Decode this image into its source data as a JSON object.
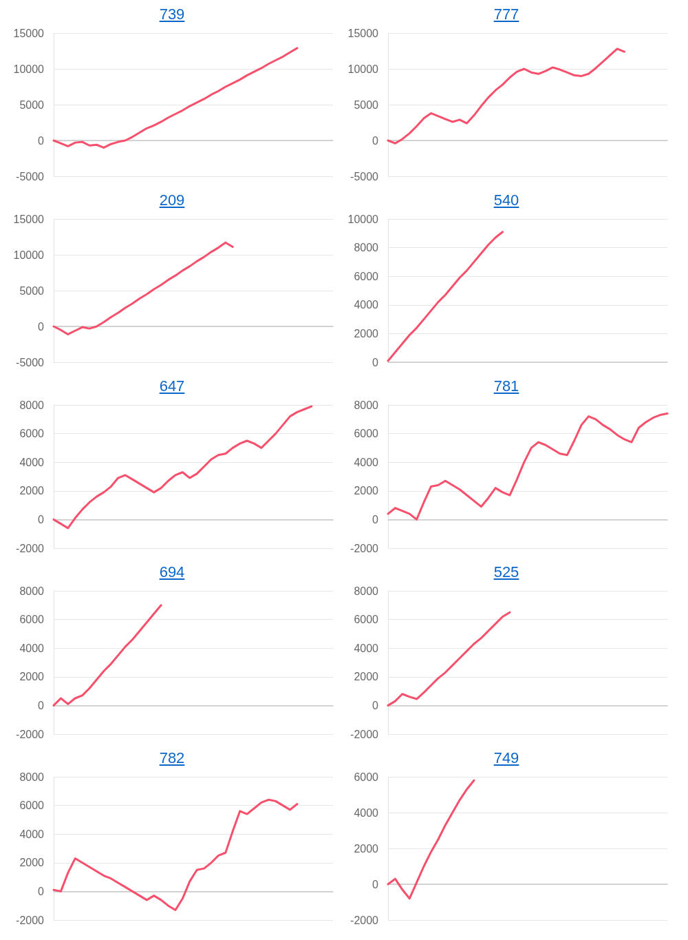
{
  "chart_data": [
    {
      "type": "line",
      "title": "739",
      "color": "#f7506c",
      "grid": "y",
      "tick_labels": "y",
      "ylim": [
        -5000,
        15000
      ],
      "yticks": [
        -5000,
        0,
        5000,
        10000,
        15000
      ],
      "categories": [
        null,
        null,
        null,
        null,
        null,
        null,
        null,
        null,
        null,
        null,
        null,
        null,
        null,
        null,
        null,
        null,
        null,
        null,
        null,
        null,
        null,
        null,
        null,
        null,
        null,
        null,
        null,
        null,
        null,
        null,
        null,
        null,
        null,
        null,
        null,
        null,
        null,
        null,
        null,
        null
      ],
      "values": [
        0,
        -400,
        -800,
        -300,
        -200,
        -700,
        -600,
        -1000,
        -500,
        -200,
        0,
        500,
        1100,
        1700,
        2100,
        2600,
        3200,
        3700,
        4200,
        4800,
        5300,
        5800,
        6400,
        6900,
        7500,
        8000,
        8500,
        9100,
        9600,
        10100,
        10700,
        11200,
        11700,
        12300,
        12900,
        null,
        null,
        null,
        null,
        null
      ]
    },
    {
      "type": "line",
      "title": "777",
      "color": "#f7506c",
      "grid": "y",
      "tick_labels": "y",
      "ylim": [
        -5000,
        15000
      ],
      "yticks": [
        -5000,
        0,
        5000,
        10000,
        15000
      ],
      "categories": [
        null,
        null,
        null,
        null,
        null,
        null,
        null,
        null,
        null,
        null,
        null,
        null,
        null,
        null,
        null,
        null,
        null,
        null,
        null,
        null,
        null,
        null,
        null,
        null,
        null,
        null,
        null,
        null,
        null,
        null,
        null,
        null,
        null,
        null,
        null,
        null,
        null,
        null,
        null,
        null
      ],
      "values": [
        0,
        -400,
        200,
        1000,
        2000,
        3100,
        3800,
        3400,
        3000,
        2600,
        2900,
        2400,
        3500,
        4800,
        6000,
        7000,
        7800,
        8800,
        9600,
        10000,
        9500,
        9300,
        9700,
        10200,
        9900,
        9500,
        9100,
        9000,
        9300,
        10100,
        11000,
        11900,
        12800,
        12400,
        null,
        null,
        null,
        null,
        null,
        null
      ]
    },
    {
      "type": "line",
      "title": "209",
      "color": "#f7506c",
      "grid": "y",
      "tick_labels": "y",
      "ylim": [
        -5000,
        15000
      ],
      "yticks": [
        -5000,
        0,
        5000,
        10000,
        15000
      ],
      "categories": [
        null,
        null,
        null,
        null,
        null,
        null,
        null,
        null,
        null,
        null,
        null,
        null,
        null,
        null,
        null,
        null,
        null,
        null,
        null,
        null,
        null,
        null,
        null,
        null,
        null,
        null,
        null,
        null,
        null,
        null,
        null,
        null,
        null,
        null,
        null,
        null,
        null,
        null,
        null,
        null
      ],
      "values": [
        0,
        -500,
        -1100,
        -600,
        -100,
        -300,
        0,
        600,
        1300,
        1900,
        2600,
        3200,
        3900,
        4500,
        5200,
        5800,
        6500,
        7100,
        7800,
        8400,
        9100,
        9700,
        10400,
        11000,
        11700,
        11100,
        null,
        null,
        null,
        null,
        null,
        null,
        null,
        null,
        null,
        null,
        null,
        null,
        null,
        null
      ]
    },
    {
      "type": "line",
      "title": "540",
      "color": "#f7506c",
      "grid": "y",
      "tick_labels": "y",
      "ylim": [
        0,
        10000
      ],
      "yticks": [
        0,
        2000,
        4000,
        6000,
        8000,
        10000
      ],
      "categories": [
        null,
        null,
        null,
        null,
        null,
        null,
        null,
        null,
        null,
        null,
        null,
        null,
        null,
        null,
        null,
        null,
        null,
        null,
        null,
        null,
        null,
        null,
        null,
        null,
        null,
        null,
        null,
        null,
        null,
        null,
        null,
        null,
        null,
        null,
        null,
        null,
        null,
        null,
        null,
        null
      ],
      "values": [
        100,
        700,
        1300,
        1900,
        2400,
        3000,
        3600,
        4200,
        4700,
        5300,
        5900,
        6400,
        7000,
        7600,
        8200,
        8700,
        9100,
        null,
        null,
        null,
        null,
        null,
        null,
        null,
        null,
        null,
        null,
        null,
        null,
        null,
        null,
        null,
        null,
        null,
        null,
        null,
        null,
        null,
        null,
        null
      ]
    },
    {
      "type": "line",
      "title": "647",
      "color": "#f7506c",
      "grid": "y",
      "tick_labels": "y",
      "ylim": [
        -2000,
        8000
      ],
      "yticks": [
        -2000,
        0,
        2000,
        4000,
        6000,
        8000
      ],
      "categories": [
        null,
        null,
        null,
        null,
        null,
        null,
        null,
        null,
        null,
        null,
        null,
        null,
        null,
        null,
        null,
        null,
        null,
        null,
        null,
        null,
        null,
        null,
        null,
        null,
        null,
        null,
        null,
        null,
        null,
        null,
        null,
        null,
        null,
        null,
        null,
        null,
        null,
        null,
        null,
        null
      ],
      "values": [
        0,
        -300,
        -600,
        100,
        700,
        1200,
        1600,
        1900,
        2300,
        2900,
        3100,
        2800,
        2500,
        2200,
        1900,
        2200,
        2700,
        3100,
        3300,
        2900,
        3200,
        3700,
        4200,
        4500,
        4600,
        5000,
        5300,
        5500,
        5300,
        5000,
        5500,
        6000,
        6600,
        7200,
        7500,
        7700,
        7900,
        null,
        null,
        null
      ]
    },
    {
      "type": "line",
      "title": "781",
      "color": "#f7506c",
      "grid": "y",
      "tick_labels": "y",
      "ylim": [
        -2000,
        8000
      ],
      "yticks": [
        -2000,
        0,
        2000,
        4000,
        6000,
        8000
      ],
      "categories": [
        null,
        null,
        null,
        null,
        null,
        null,
        null,
        null,
        null,
        null,
        null,
        null,
        null,
        null,
        null,
        null,
        null,
        null,
        null,
        null,
        null,
        null,
        null,
        null,
        null,
        null,
        null,
        null,
        null,
        null,
        null,
        null,
        null,
        null,
        null,
        null,
        null,
        null,
        null,
        null
      ],
      "values": [
        400,
        800,
        600,
        400,
        0,
        1200,
        2300,
        2400,
        2700,
        2400,
        2100,
        1700,
        1300,
        900,
        1500,
        2200,
        1900,
        1700,
        2800,
        4000,
        5000,
        5400,
        5200,
        4900,
        4600,
        4500,
        5500,
        6600,
        7200,
        7000,
        6600,
        6300,
        5900,
        5600,
        5400,
        6400,
        6800,
        7100,
        7300,
        7400
      ]
    },
    {
      "type": "line",
      "title": "694",
      "color": "#f7506c",
      "grid": "y",
      "tick_labels": "y",
      "ylim": [
        -2000,
        8000
      ],
      "yticks": [
        -2000,
        0,
        2000,
        4000,
        6000,
        8000
      ],
      "categories": [
        null,
        null,
        null,
        null,
        null,
        null,
        null,
        null,
        null,
        null,
        null,
        null,
        null,
        null,
        null,
        null,
        null,
        null,
        null,
        null,
        null,
        null,
        null,
        null,
        null,
        null,
        null,
        null,
        null,
        null,
        null,
        null,
        null,
        null,
        null,
        null,
        null,
        null,
        null,
        null
      ],
      "values": [
        0,
        500,
        100,
        500,
        700,
        1200,
        1800,
        2400,
        2900,
        3500,
        4100,
        4600,
        5200,
        5800,
        6400,
        7000,
        null,
        null,
        null,
        null,
        null,
        null,
        null,
        null,
        null,
        null,
        null,
        null,
        null,
        null,
        null,
        null,
        null,
        null,
        null,
        null,
        null,
        null,
        null,
        null
      ]
    },
    {
      "type": "line",
      "title": "525",
      "color": "#f7506c",
      "grid": "y",
      "tick_labels": "y",
      "ylim": [
        -2000,
        8000
      ],
      "yticks": [
        -2000,
        0,
        2000,
        4000,
        6000,
        8000
      ],
      "categories": [
        null,
        null,
        null,
        null,
        null,
        null,
        null,
        null,
        null,
        null,
        null,
        null,
        null,
        null,
        null,
        null,
        null,
        null,
        null,
        null,
        null,
        null,
        null,
        null,
        null,
        null,
        null,
        null,
        null,
        null,
        null,
        null,
        null,
        null,
        null,
        null,
        null,
        null,
        null,
        null
      ],
      "values": [
        0,
        300,
        800,
        600,
        450,
        900,
        1400,
        1900,
        2300,
        2800,
        3300,
        3800,
        4300,
        4700,
        5200,
        5700,
        6200,
        6500,
        null,
        null,
        null,
        null,
        null,
        null,
        null,
        null,
        null,
        null,
        null,
        null,
        null,
        null,
        null,
        null,
        null,
        null,
        null,
        null,
        null,
        null
      ]
    },
    {
      "type": "line",
      "title": "782",
      "color": "#f7506c",
      "grid": "y",
      "tick_labels": "y",
      "ylim": [
        -2000,
        8000
      ],
      "yticks": [
        -2000,
        0,
        2000,
        4000,
        6000,
        8000
      ],
      "categories": [
        null,
        null,
        null,
        null,
        null,
        null,
        null,
        null,
        null,
        null,
        null,
        null,
        null,
        null,
        null,
        null,
        null,
        null,
        null,
        null,
        null,
        null,
        null,
        null,
        null,
        null,
        null,
        null,
        null,
        null,
        null,
        null,
        null,
        null,
        null,
        null,
        null,
        null,
        null,
        null
      ],
      "values": [
        100,
        0,
        1300,
        2300,
        2000,
        1700,
        1400,
        1100,
        900,
        600,
        300,
        0,
        -300,
        -600,
        -300,
        -600,
        -1000,
        -1300,
        -500,
        700,
        1500,
        1600,
        2000,
        2500,
        2700,
        4200,
        5600,
        5400,
        5800,
        6200,
        6400,
        6300,
        6000,
        5700,
        6100,
        null,
        null,
        null,
        null,
        null
      ]
    },
    {
      "type": "line",
      "title": "749",
      "color": "#f7506c",
      "grid": "y",
      "tick_labels": "y",
      "ylim": [
        -2000,
        6000
      ],
      "yticks": [
        -2000,
        0,
        2000,
        4000,
        6000
      ],
      "categories": [
        null,
        null,
        null,
        null,
        null,
        null,
        null,
        null,
        null,
        null,
        null,
        null,
        null,
        null,
        null,
        null,
        null,
        null,
        null,
        null,
        null,
        null,
        null,
        null,
        null,
        null,
        null,
        null,
        null,
        null,
        null,
        null,
        null,
        null,
        null,
        null,
        null,
        null,
        null,
        null
      ],
      "values": [
        0,
        300,
        -300,
        -800,
        100,
        1000,
        1800,
        2500,
        3300,
        4000,
        4700,
        5300,
        5800,
        null,
        null,
        null,
        null,
        null,
        null,
        null,
        null,
        null,
        null,
        null,
        null,
        null,
        null,
        null,
        null,
        null,
        null,
        null,
        null,
        null,
        null,
        null,
        null,
        null,
        null,
        null
      ]
    }
  ]
}
